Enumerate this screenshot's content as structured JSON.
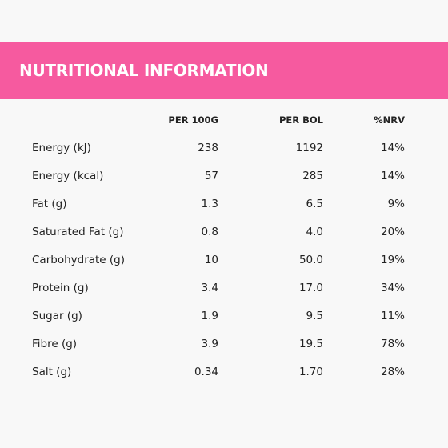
{
  "header": {
    "title": "NUTRITIONAL INFORMATION"
  },
  "table": {
    "columns": [
      "PER 100G",
      "PER BOL",
      "%NRV"
    ],
    "rows": [
      [
        "Energy (kJ)",
        "238",
        "1192",
        "14%"
      ],
      [
        "Energy (kcal)",
        "57",
        "285",
        "14%"
      ],
      [
        "Fat (g)",
        "1.3",
        "6.5",
        "9%"
      ],
      [
        "Saturated Fat (g)",
        "0.8",
        "4.0",
        "20%"
      ],
      [
        "Carbohydrate (g)",
        "10",
        "50.0",
        "19%"
      ],
      [
        "Protein (g)",
        "3.4",
        "17.0",
        "34%"
      ],
      [
        "Sugar (g)",
        "1.9",
        "9.5",
        "11%"
      ],
      [
        "Fibre (g)",
        "3.9",
        "19.5",
        "78%"
      ],
      [
        "Salt (g)",
        "0.34",
        "1.70",
        "28%"
      ]
    ]
  }
}
